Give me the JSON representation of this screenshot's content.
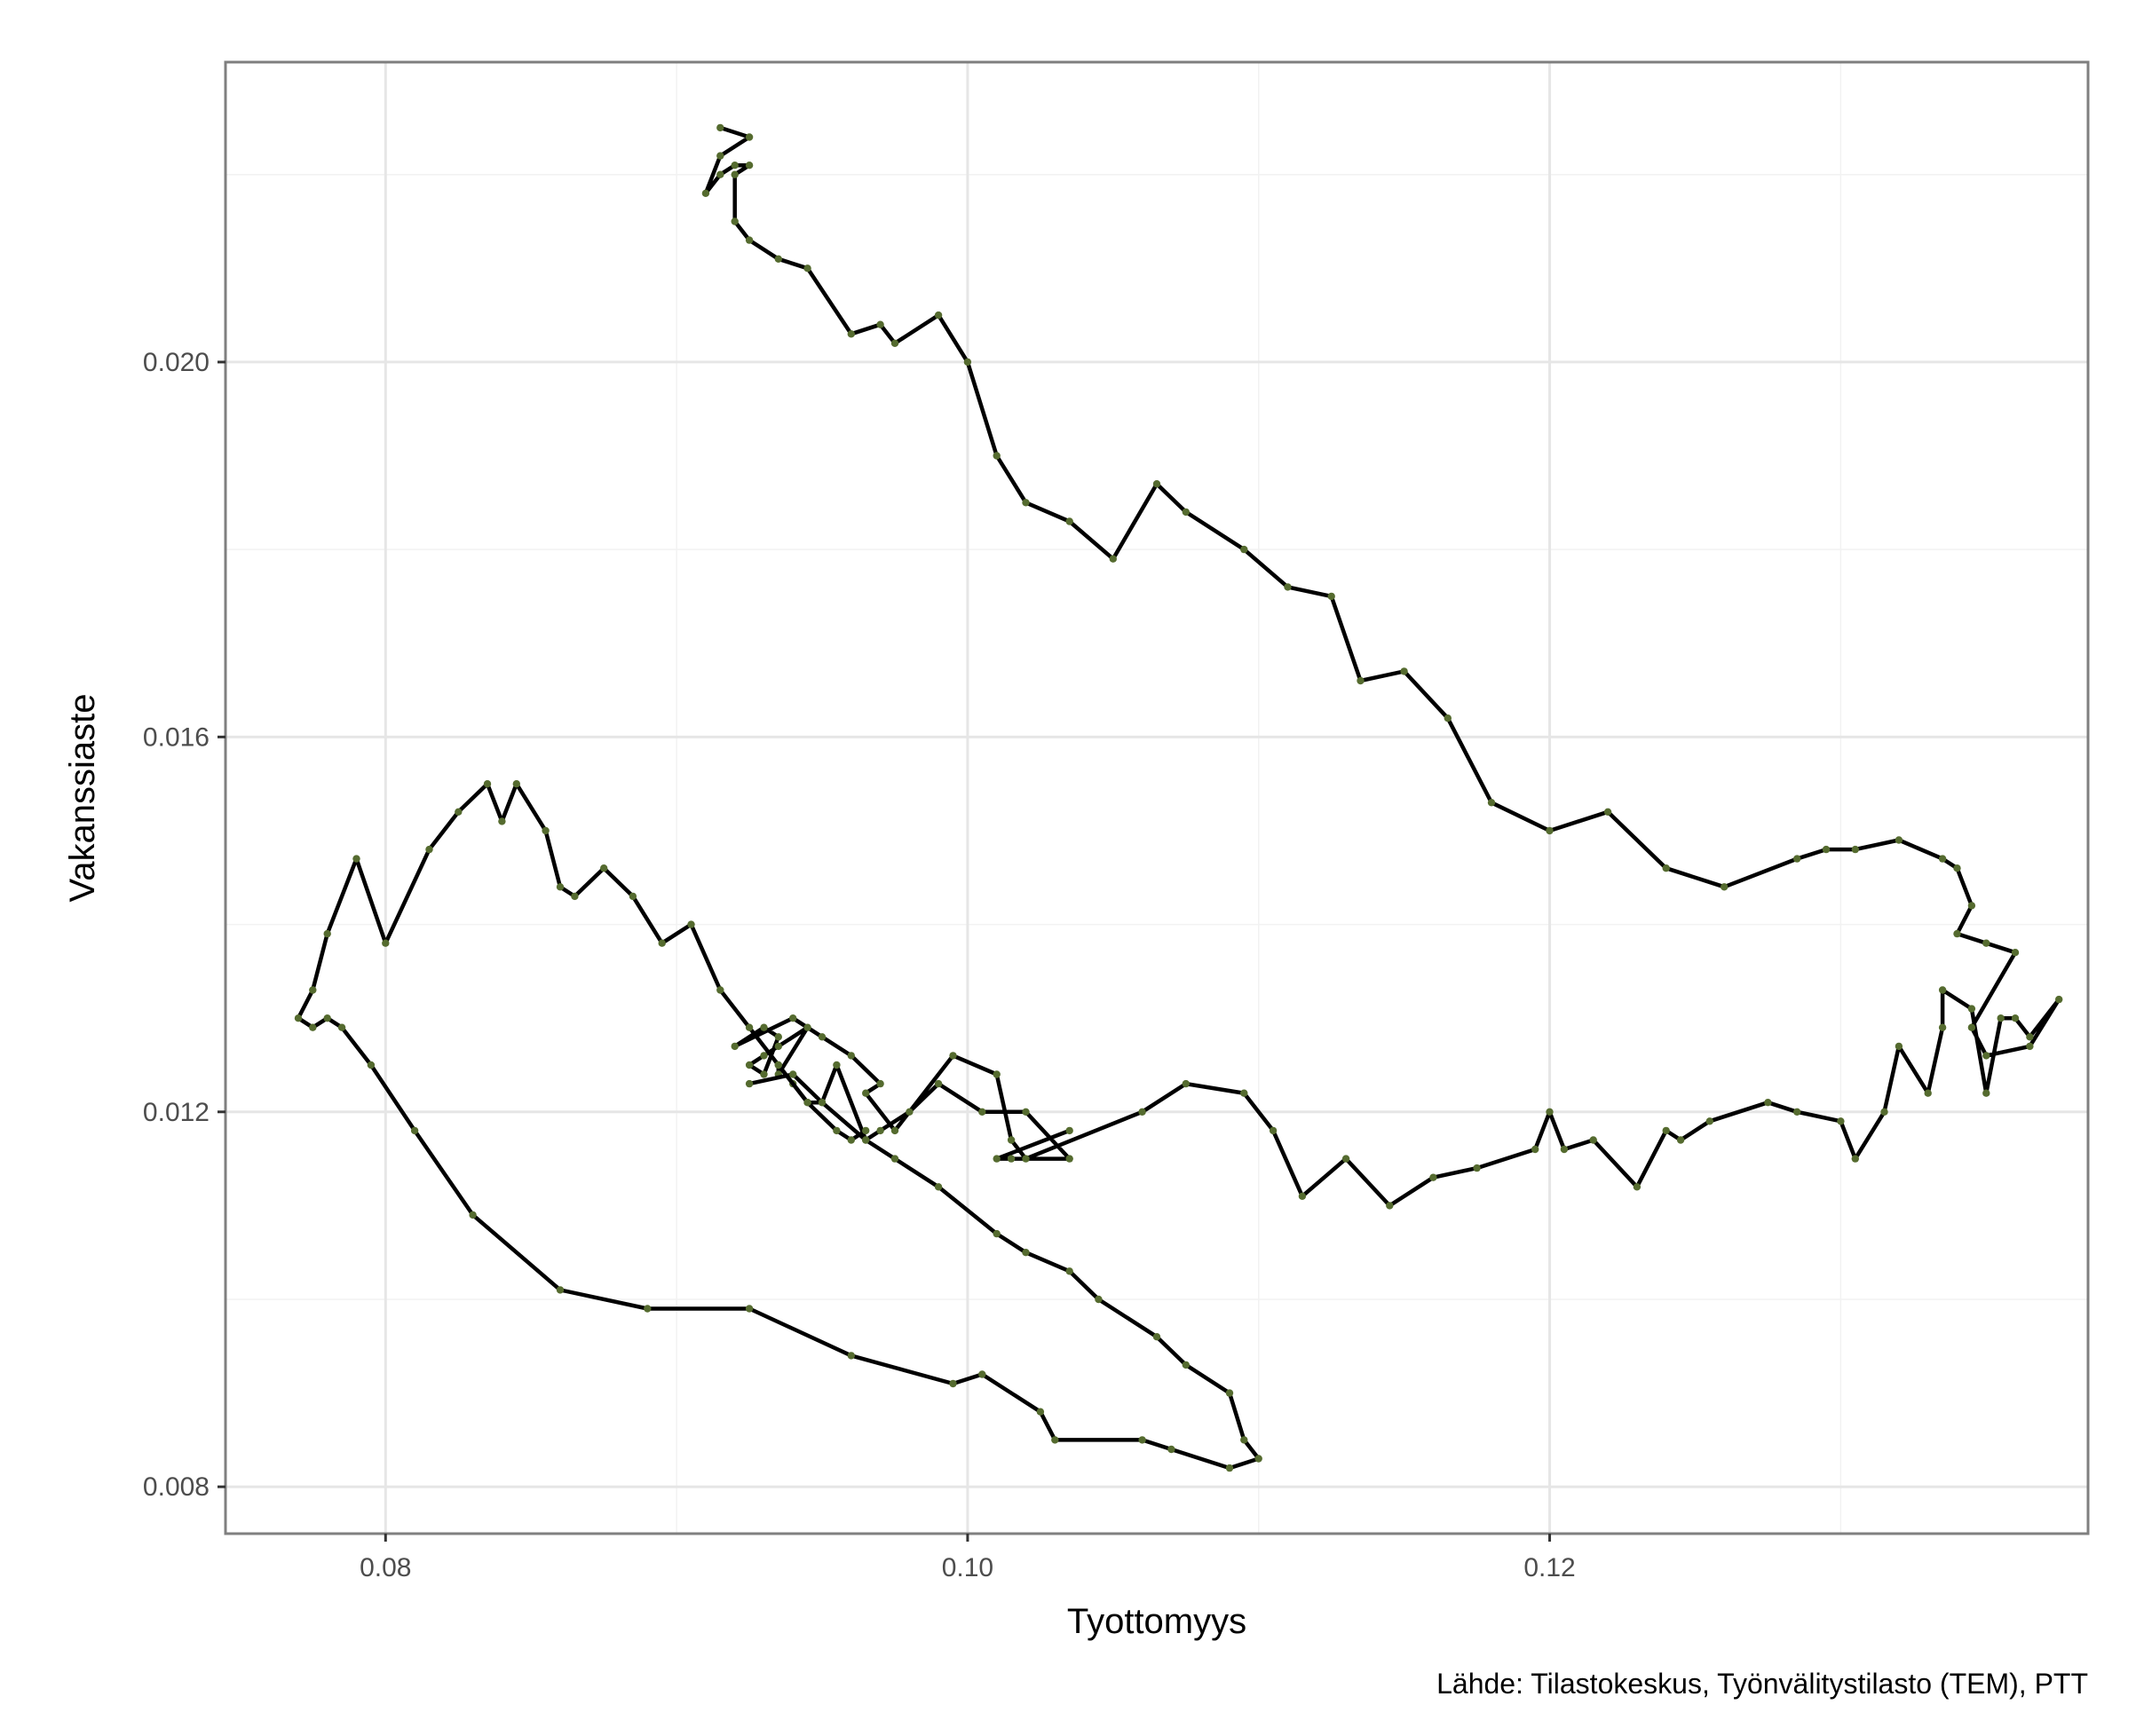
{
  "chart_data": {
    "type": "line",
    "xlabel": "Tyottomyys",
    "ylabel": "Vakanssiaste",
    "caption": "Lähde: Tilastokeskus, Työnvälitystilasto (TEM), PTT",
    "xlim": [
      0.0745,
      0.1385
    ],
    "ylim": [
      0.0075,
      0.0232
    ],
    "x_ticks": [
      0.08,
      0.1,
      0.12
    ],
    "x_tick_labels": [
      "0.08",
      "0.10",
      "0.12"
    ],
    "y_ticks": [
      0.008,
      0.012,
      0.016,
      0.02
    ],
    "y_tick_labels": [
      "0.008",
      "0.012",
      "0.016",
      "0.020"
    ],
    "grid": true,
    "colors": {
      "line": "#000000",
      "point": "#556b2f",
      "grid": "#e6e6e6",
      "panel_border": "#7f7f7f",
      "background": "#ffffff"
    },
    "series": [
      {
        "x": [
          0.1035,
          0.101,
          0.1015,
          0.1035,
          0.102,
          0.1005,
          0.099,
          0.098,
          0.097,
          0.0965,
          0.0955,
          0.095,
          0.0945,
          0.094,
          0.0935,
          0.0935,
          0.0945,
          0.0935,
          0.093,
          0.0925,
          0.093,
          0.0935,
          0.093,
          0.092,
          0.094,
          0.095,
          0.096,
          0.097,
          0.0965,
          0.0975,
          0.0995,
          0.101,
          0.1015,
          0.102,
          0.106,
          0.1075,
          0.1095,
          0.1105,
          0.1115,
          0.113,
          0.1145,
          0.116,
          0.1175,
          0.1195,
          0.12,
          0.1205,
          0.1215,
          0.123,
          0.124,
          0.1245,
          0.1255,
          0.1275,
          0.1285,
          0.13,
          0.1305,
          0.1315,
          0.132,
          0.133,
          0.1335,
          0.1335,
          0.1345,
          0.135,
          0.1355,
          0.136,
          0.1365,
          0.1375,
          0.1365,
          0.135,
          0.1345,
          0.136,
          0.135,
          0.134,
          0.1345,
          0.134,
          0.1335,
          0.132,
          0.1305,
          0.1295,
          0.1285,
          0.126,
          0.124,
          0.122,
          0.12,
          0.118,
          0.1165,
          0.115,
          0.1135,
          0.1125,
          0.111,
          0.1095,
          0.1075,
          0.1065,
          0.105,
          0.1035,
          0.102,
          0.101,
          0.1,
          0.099,
          0.0975,
          0.097,
          0.096,
          0.0945,
          0.0935,
          0.0925,
          0.092,
          0.092,
          0.0925,
          0.092,
          0.0915,
          0.091,
          0.0915,
          0.0925,
          0.0915
        ],
        "y": [
          0.0118,
          0.0115,
          0.0115,
          0.0115,
          0.012,
          0.012,
          0.0123,
          0.012,
          0.0118,
          0.0117,
          0.0125,
          0.0121,
          0.0121,
          0.0123,
          0.0125,
          0.0124,
          0.0129,
          0.0127,
          0.0126,
          0.0125,
          0.0124,
          0.0128,
          0.0129,
          0.0127,
          0.013,
          0.0128,
          0.0126,
          0.0123,
          0.0122,
          0.0118,
          0.0126,
          0.0124,
          0.0117,
          0.0115,
          0.012,
          0.0123,
          0.0122,
          0.0118,
          0.0111,
          0.0115,
          0.011,
          0.0113,
          0.0114,
          0.0116,
          0.012,
          0.0116,
          0.0117,
          0.0112,
          0.0118,
          0.0117,
          0.0119,
          0.0121,
          0.012,
          0.0119,
          0.0115,
          0.012,
          0.0127,
          0.0122,
          0.0129,
          0.0133,
          0.0131,
          0.0122,
          0.013,
          0.013,
          0.0128,
          0.0132,
          0.0127,
          0.0126,
          0.0129,
          0.0137,
          0.0138,
          0.0139,
          0.0142,
          0.0146,
          0.0147,
          0.0149,
          0.0148,
          0.0148,
          0.0147,
          0.0144,
          0.0146,
          0.0152,
          0.015,
          0.0153,
          0.0162,
          0.0167,
          0.0166,
          0.0175,
          0.0176,
          0.018,
          0.0184,
          0.0187,
          0.0179,
          0.0183,
          0.0185,
          0.019,
          0.02,
          0.0205,
          0.0202,
          0.0204,
          0.0203,
          0.021,
          0.0211,
          0.0213,
          0.0215,
          0.022,
          0.0221,
          0.0221,
          0.022,
          0.0218,
          0.0222,
          0.0224,
          0.0225
        ]
      },
      {
        "x": [
          0.0925,
          0.094,
          0.095,
          0.0965,
          0.0975,
          0.099,
          0.101,
          0.102,
          0.1035,
          0.1045,
          0.1065,
          0.1075,
          0.109,
          0.1095,
          0.11,
          0.109,
          0.107,
          0.106,
          0.103,
          0.1025,
          0.1005,
          0.0995,
          0.096,
          0.0925,
          0.089,
          0.086,
          0.083,
          0.081,
          0.0795,
          0.0785,
          0.078,
          0.0775,
          0.077,
          0.0775,
          0.078,
          0.079,
          0.08,
          0.0815,
          0.0825,
          0.0835,
          0.084,
          0.0845,
          0.0855,
          0.086,
          0.0865,
          0.0875,
          0.0885,
          0.0895,
          0.0905,
          0.0915,
          0.0925,
          0.0935,
          0.0945,
          0.0955,
          0.096,
          0.0965
        ],
        "y": [
          0.0123,
          0.0124,
          0.0121,
          0.0117,
          0.0115,
          0.0112,
          0.0107,
          0.0105,
          0.0103,
          0.01,
          0.0096,
          0.0093,
          0.009,
          0.0085,
          0.0083,
          0.0082,
          0.0084,
          0.0085,
          0.0085,
          0.0088,
          0.0092,
          0.0091,
          0.0094,
          0.0099,
          0.0099,
          0.0101,
          0.0109,
          0.0118,
          0.0125,
          0.0129,
          0.013,
          0.0129,
          0.013,
          0.0133,
          0.0139,
          0.0147,
          0.0138,
          0.0148,
          0.0152,
          0.0155,
          0.0151,
          0.0155,
          0.015,
          0.0144,
          0.0143,
          0.0146,
          0.0143,
          0.0138,
          0.014,
          0.0133,
          0.0129,
          0.0125,
          0.0121,
          0.0118,
          0.0117,
          0.0118
        ]
      }
    ]
  }
}
